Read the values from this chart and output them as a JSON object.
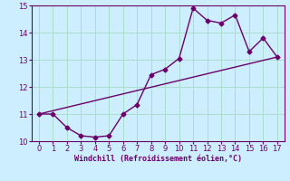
{
  "line1_x": [
    0,
    1,
    2,
    3,
    4,
    5,
    6,
    7,
    8,
    9,
    10,
    11,
    12,
    13,
    14,
    15,
    16,
    17
  ],
  "line1_y": [
    11.0,
    11.0,
    10.5,
    10.2,
    10.15,
    10.2,
    11.0,
    11.35,
    12.45,
    12.65,
    13.05,
    14.9,
    14.45,
    14.35,
    14.65,
    13.3,
    13.8,
    13.1
  ],
  "line2_x": [
    0,
    17
  ],
  "line2_y": [
    11.0,
    13.1
  ],
  "line_color": "#6b006b",
  "bg_color": "#cceeff",
  "grid_color": "#aaddcc",
  "xlabel": "Windchill (Refroidissement éolien,°C)",
  "xlim": [
    -0.5,
    17.5
  ],
  "ylim": [
    10,
    15
  ],
  "yticks": [
    10,
    11,
    12,
    13,
    14,
    15
  ],
  "xticks": [
    0,
    1,
    2,
    3,
    4,
    5,
    6,
    7,
    8,
    9,
    10,
    11,
    12,
    13,
    14,
    15,
    16,
    17
  ],
  "marker": "D",
  "markersize": 2.5,
  "linewidth": 1.0
}
